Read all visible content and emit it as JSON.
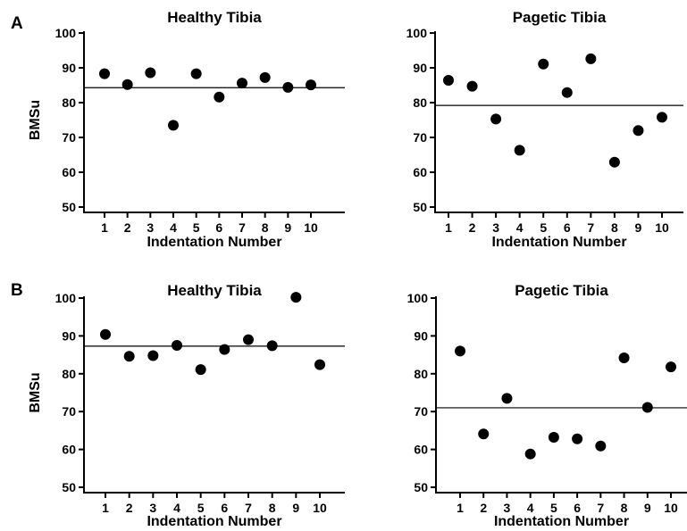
{
  "panels": [
    {
      "letter": "A"
    },
    {
      "letter": "B"
    }
  ],
  "chart_data": [
    {
      "type": "scatter",
      "panel": "A",
      "title": "Healthy Tibia",
      "xlabel": "Indentation Number",
      "ylabel": "BMSu",
      "x": [
        1,
        2,
        3,
        4,
        5,
        6,
        7,
        8,
        9,
        10
      ],
      "y": [
        88.3,
        85.2,
        88.6,
        73.5,
        88.3,
        81.6,
        85.6,
        87.2,
        84.4,
        85.1
      ],
      "mean_line": 84.3,
      "ylim": [
        50,
        100
      ],
      "yticks": [
        50,
        60,
        70,
        80,
        90,
        100
      ],
      "xticks": [
        1,
        2,
        3,
        4,
        5,
        6,
        7,
        8,
        9,
        10
      ],
      "marker_color": "#000000"
    },
    {
      "type": "scatter",
      "panel": "A",
      "title": "Pagetic Tibia",
      "xlabel": "Indentation Number",
      "ylabel": "",
      "x": [
        1,
        2,
        3,
        4,
        5,
        6,
        7,
        8,
        9,
        10
      ],
      "y": [
        86.4,
        84.7,
        75.3,
        66.3,
        91.1,
        82.9,
        92.6,
        62.9,
        72.0,
        75.8
      ],
      "mean_line": 79.2,
      "ylim": [
        50,
        100
      ],
      "yticks": [
        50,
        60,
        70,
        80,
        90,
        100
      ],
      "xticks": [
        1,
        2,
        3,
        4,
        5,
        6,
        7,
        8,
        9,
        10
      ],
      "marker_color": "#000000"
    },
    {
      "type": "scatter",
      "panel": "B",
      "title": "Healthy Tibia",
      "xlabel": "Indentation Number",
      "ylabel": "BMSu",
      "x": [
        1,
        2,
        3,
        4,
        5,
        6,
        7,
        8,
        9,
        10
      ],
      "y": [
        90.4,
        84.6,
        84.8,
        87.5,
        81.1,
        86.4,
        89.0,
        87.4,
        100.2,
        82.4
      ],
      "mean_line": 87.3,
      "ylim": [
        50,
        100
      ],
      "yticks": [
        50,
        60,
        70,
        80,
        90,
        100
      ],
      "xticks": [
        1,
        2,
        3,
        4,
        5,
        6,
        7,
        8,
        9,
        10
      ],
      "marker_color": "#000000"
    },
    {
      "type": "scatter",
      "panel": "B",
      "title": "Pagetic Tibia",
      "xlabel": "Indentation Number",
      "ylabel": "",
      "x": [
        1,
        2,
        3,
        4,
        5,
        6,
        7,
        8,
        9,
        10
      ],
      "y": [
        86.0,
        64.1,
        73.5,
        58.8,
        63.2,
        62.8,
        60.9,
        84.2,
        71.1,
        81.8
      ],
      "mean_line": 71.0,
      "ylim": [
        50,
        100
      ],
      "yticks": [
        50,
        60,
        70,
        80,
        90,
        100
      ],
      "xticks": [
        1,
        2,
        3,
        4,
        5,
        6,
        7,
        8,
        9,
        10
      ],
      "marker_color": "#000000"
    }
  ]
}
